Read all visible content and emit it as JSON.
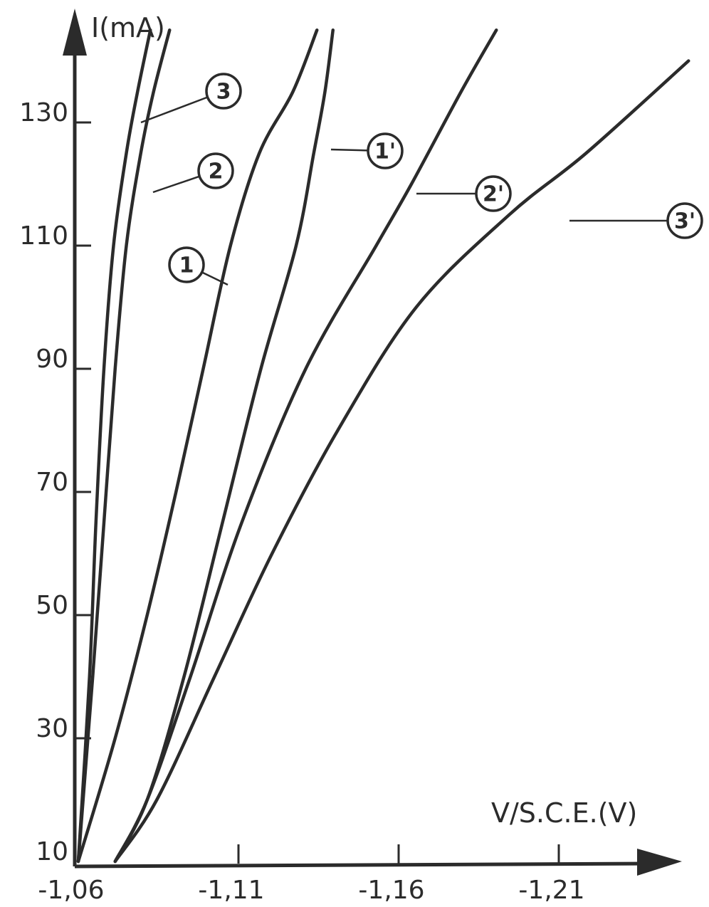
{
  "chart_data": {
    "type": "line",
    "ylabel": "I(mA)",
    "xlabel": "V/S.C.E.(V)",
    "y_ticks": [
      "10",
      "30",
      "50",
      "70",
      "90",
      "110",
      "130"
    ],
    "x_ticks": [
      "-1,06",
      "-1,11",
      "-1,16",
      "-1,21"
    ],
    "xlim": [
      -1.06,
      -1.25
    ],
    "ylim": [
      10,
      150
    ],
    "grid": false,
    "series": [
      {
        "name": "3",
        "points": [
          [
            -1.06,
            10
          ],
          [
            -1.0635,
            40
          ],
          [
            -1.0655,
            65
          ],
          [
            -1.068,
            90
          ],
          [
            -1.071,
            110
          ],
          [
            -1.075,
            125
          ],
          [
            -1.0785,
            135
          ],
          [
            -1.0825,
            145
          ]
        ]
      },
      {
        "name": "2",
        "points": [
          [
            -1.06,
            10
          ],
          [
            -1.0615,
            20
          ],
          [
            -1.0645,
            40
          ],
          [
            -1.068,
            65
          ],
          [
            -1.0715,
            90
          ],
          [
            -1.075,
            110
          ],
          [
            -1.0795,
            125
          ],
          [
            -1.0835,
            135
          ],
          [
            -1.0885,
            145
          ]
        ]
      },
      {
        "name": "1",
        "points": [
          [
            -1.06,
            10
          ],
          [
            -1.0715,
            30
          ],
          [
            -1.0815,
            50
          ],
          [
            -1.0905,
            70
          ],
          [
            -1.099,
            90
          ],
          [
            -1.1075,
            110
          ],
          [
            -1.1165,
            125
          ],
          [
            -1.127,
            135
          ],
          [
            -1.1345,
            145
          ]
        ]
      },
      {
        "name": "1'",
        "points": [
          [
            -1.0715,
            10
          ],
          [
            -1.0815,
            20
          ],
          [
            -1.093,
            40
          ],
          [
            -1.105,
            65
          ],
          [
            -1.117,
            90
          ],
          [
            -1.128,
            110
          ],
          [
            -1.1335,
            125
          ],
          [
            -1.137,
            135
          ],
          [
            -1.1395,
            145
          ]
        ]
      },
      {
        "name": "2'",
        "points": [
          [
            -1.0715,
            10
          ],
          [
            -1.0815,
            20
          ],
          [
            -1.095,
            40
          ],
          [
            -1.111,
            65
          ],
          [
            -1.131,
            90
          ],
          [
            -1.153,
            110
          ],
          [
            -1.164,
            120
          ],
          [
            -1.1795,
            135
          ],
          [
            -1.1905,
            145
          ]
        ]
      },
      {
        "name": "3'",
        "points": [
          [
            -1.0715,
            10
          ],
          [
            -1.0845,
            20
          ],
          [
            -1.1025,
            40
          ],
          [
            -1.1205,
            60
          ],
          [
            -1.141,
            80
          ],
          [
            -1.1655,
            100
          ],
          [
            -1.1945,
            115
          ],
          [
            -1.2185,
            125
          ],
          [
            -1.2505,
            140
          ]
        ]
      }
    ],
    "annotations": [
      {
        "text": "3",
        "series": "3"
      },
      {
        "text": "2",
        "series": "2"
      },
      {
        "text": "1",
        "series": "1"
      },
      {
        "text": "1'",
        "series": "1'"
      },
      {
        "text": "2'",
        "series": "2'"
      },
      {
        "text": "3'",
        "series": "3'"
      }
    ]
  }
}
